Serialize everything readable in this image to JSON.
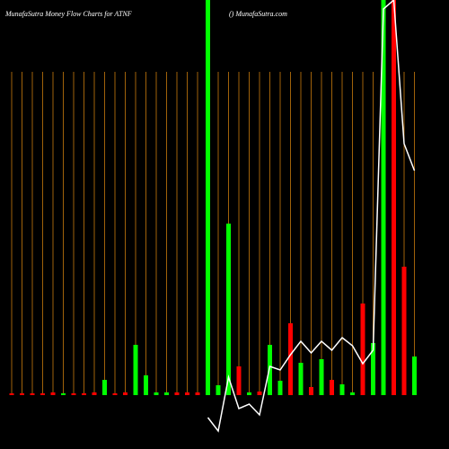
{
  "chart_data": {
    "type": "bar",
    "title": "MunafaSutra  Money Flow  Charts for ATNF",
    "subtitle": "() MunafaSutra.com",
    "categories": [
      null,
      null,
      null,
      null,
      null,
      null,
      null,
      null,
      null,
      null,
      null,
      null,
      null,
      null,
      null,
      null,
      null,
      null,
      null,
      null,
      null,
      null,
      null,
      null,
      null,
      null,
      null,
      null,
      null,
      null,
      null,
      null,
      null,
      null,
      null,
      null,
      null,
      null,
      null,
      null
    ],
    "values": [
      2,
      2,
      2,
      2,
      3,
      2,
      2,
      2,
      3,
      17,
      2,
      3,
      56,
      22,
      3,
      3,
      3,
      3,
      3,
      440,
      11,
      191,
      32,
      3,
      4,
      56,
      16,
      80,
      36,
      9,
      40,
      17,
      12,
      3,
      102,
      58,
      440,
      440,
      143,
      43
    ],
    "colors": [
      "#ff0000",
      "#ff0000",
      "#ff0000",
      "#ff0000",
      "#ff0000",
      "#00ff00",
      "#ff0000",
      "#ff0000",
      "#ff0000",
      "#00ff00",
      "#ff0000",
      "#ff0000",
      "#00ff00",
      "#00ff00",
      "#00ff00",
      "#00ff00",
      "#ff0000",
      "#ff0000",
      "#ff0000",
      "#00ff00",
      "#00ff00",
      "#00ff00",
      "#ff0000",
      "#00ff00",
      "#ff0000",
      "#00ff00",
      "#00ff00",
      "#ff0000",
      "#00ff00",
      "#ff0000",
      "#00ff00",
      "#ff0000",
      "#00ff00",
      "#00ff00",
      "#ff0000",
      "#00ff00",
      "#00ff00",
      "#ff0000",
      "#ff0000",
      "#00ff00"
    ],
    "line": {
      "color": "#ffffff",
      "values": [
        null,
        null,
        null,
        null,
        null,
        null,
        null,
        null,
        null,
        null,
        null,
        null,
        null,
        null,
        null,
        null,
        null,
        null,
        null,
        -25,
        -40,
        20,
        -15,
        -10,
        -22,
        32,
        28,
        45,
        60,
        47,
        60,
        50,
        64,
        55,
        35,
        50,
        430,
        440,
        280,
        250
      ]
    },
    "ylim": [
      -60,
      440
    ],
    "grid_color": "#a0620a"
  }
}
